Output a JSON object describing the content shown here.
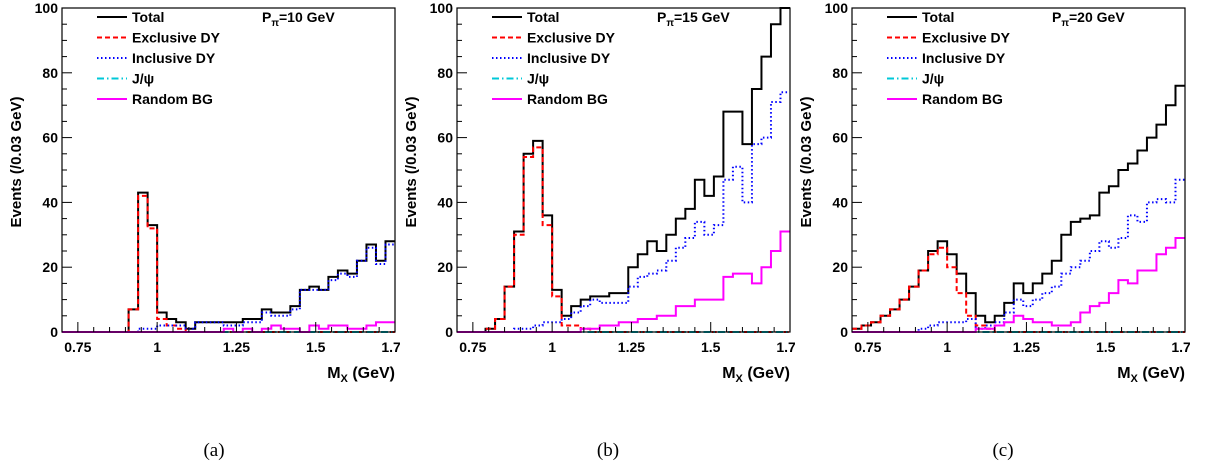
{
  "chart_data": [
    {
      "type": "histogram",
      "title": "",
      "caption": "(a)",
      "annotation": {
        "main": "P",
        "sub": "π",
        "rest": "=10 GeV"
      },
      "xlabel": {
        "main": "M",
        "sub": "X",
        "rest": " (GeV)"
      },
      "ylabel": "Events (/0.03 GeV)",
      "xlim": [
        0.7,
        1.75
      ],
      "ylim": [
        0,
        100
      ],
      "xticks": [
        0.75,
        1,
        1.25,
        1.5,
        1.75
      ],
      "xtick_labels": [
        "0.75",
        "1",
        "1.25",
        "1.5",
        "1.75"
      ],
      "yticks": [
        0,
        20,
        40,
        60,
        80,
        100
      ],
      "ytick_labels": [
        "0",
        "20",
        "40",
        "60",
        "80",
        "100"
      ],
      "legend": {
        "placement": "top-left"
      },
      "x_edges": [
        0.7,
        0.73,
        0.76,
        0.79,
        0.82,
        0.85,
        0.88,
        0.91,
        0.94,
        0.97,
        1.0,
        1.03,
        1.06,
        1.09,
        1.12,
        1.15,
        1.18,
        1.21,
        1.24,
        1.27,
        1.3,
        1.33,
        1.36,
        1.39,
        1.42,
        1.45,
        1.48,
        1.51,
        1.54,
        1.57,
        1.6,
        1.63,
        1.66,
        1.69,
        1.72,
        1.75
      ],
      "series": [
        {
          "name": "Total",
          "color": "#000000",
          "dash": "",
          "values": [
            0,
            0,
            0,
            0,
            0,
            0,
            0,
            7,
            43,
            33,
            6,
            4,
            3,
            1,
            3,
            3,
            3,
            3,
            3,
            4,
            4,
            7,
            6,
            6,
            8,
            13,
            14,
            13,
            17,
            19,
            18,
            22,
            27,
            22,
            28
          ]
        },
        {
          "name": "Exclusive DY",
          "color": "#ff0000",
          "dash": "5,3",
          "values": [
            0,
            0,
            0,
            0,
            0,
            0,
            0,
            7,
            42,
            32,
            4,
            2,
            1,
            0,
            0,
            0,
            0,
            0,
            0,
            0,
            0,
            0,
            0,
            0,
            0,
            0,
            0,
            0,
            0,
            0,
            0,
            0,
            0,
            0,
            0
          ]
        },
        {
          "name": "Inclusive DY",
          "color": "#0000ff",
          "dash": "1.5,2.5",
          "values": [
            0,
            0,
            0,
            0,
            0,
            0,
            0,
            0,
            1,
            1,
            2,
            2,
            2,
            1,
            3,
            3,
            3,
            2,
            2,
            3,
            3,
            6,
            5,
            5,
            7,
            13,
            13,
            13,
            16,
            18,
            17,
            22,
            26,
            21,
            27
          ]
        },
        {
          "name": "J/ψ",
          "color": "#00c8d8",
          "dash": "7,3,1.5,3",
          "values": [
            0,
            0,
            0,
            0,
            0,
            0,
            0,
            0,
            0,
            0,
            0,
            0,
            0,
            0,
            0,
            0,
            0,
            0,
            0,
            0,
            0,
            0,
            0,
            0,
            0,
            0,
            0,
            0,
            0,
            0,
            0,
            0,
            0,
            0,
            0
          ]
        },
        {
          "name": "Random BG",
          "color": "#ff00ff",
          "dash": "",
          "values": [
            0,
            0,
            0,
            0,
            0,
            0,
            0,
            0,
            0,
            0,
            0,
            0,
            0,
            0,
            0,
            0,
            0,
            1,
            0,
            1,
            0,
            1,
            2,
            1,
            1,
            0,
            2,
            1,
            2,
            2,
            1,
            1,
            2,
            3,
            3
          ]
        }
      ]
    },
    {
      "type": "histogram",
      "title": "",
      "caption": "(b)",
      "annotation": {
        "main": "P",
        "sub": "π",
        "rest": "=15 GeV"
      },
      "xlabel": {
        "main": "M",
        "sub": "X",
        "rest": " (GeV)"
      },
      "ylabel": "Events (/0.03 GeV)",
      "xlim": [
        0.7,
        1.75
      ],
      "ylim": [
        0,
        100
      ],
      "xticks": [
        0.75,
        1,
        1.25,
        1.5,
        1.75
      ],
      "xtick_labels": [
        "0.75",
        "1",
        "1.25",
        "1.5",
        "1.75"
      ],
      "yticks": [
        0,
        20,
        40,
        60,
        80,
        100
      ],
      "ytick_labels": [
        "0",
        "20",
        "40",
        "60",
        "80",
        "100"
      ],
      "legend": {
        "placement": "top-left"
      },
      "x_edges": [
        0.7,
        0.73,
        0.76,
        0.79,
        0.82,
        0.85,
        0.88,
        0.91,
        0.94,
        0.97,
        1.0,
        1.03,
        1.06,
        1.09,
        1.12,
        1.15,
        1.18,
        1.21,
        1.24,
        1.27,
        1.3,
        1.33,
        1.36,
        1.39,
        1.42,
        1.45,
        1.48,
        1.51,
        1.54,
        1.57,
        1.6,
        1.63,
        1.66,
        1.69,
        1.72,
        1.75
      ],
      "series": [
        {
          "name": "Total",
          "color": "#000000",
          "dash": "",
          "values": [
            0,
            0,
            0,
            1,
            4,
            14,
            31,
            55,
            59,
            36,
            13,
            5,
            8,
            10,
            11,
            11,
            12,
            12,
            20,
            24,
            28,
            25,
            30,
            35,
            38,
            47,
            42,
            48,
            68,
            68,
            58,
            75,
            85,
            95,
            100
          ]
        },
        {
          "name": "Exclusive DY",
          "color": "#ff0000",
          "dash": "5,3",
          "values": [
            0,
            0,
            0,
            1,
            4,
            14,
            30,
            54,
            57,
            33,
            11,
            2,
            2,
            1,
            0,
            0,
            0,
            0,
            0,
            0,
            0,
            0,
            0,
            0,
            0,
            0,
            0,
            0,
            0,
            0,
            0,
            0,
            0,
            0,
            0
          ]
        },
        {
          "name": "Inclusive DY",
          "color": "#0000ff",
          "dash": "1.5,2.5",
          "values": [
            0,
            0,
            0,
            0,
            0,
            0,
            1,
            1,
            2,
            3,
            3,
            4,
            6,
            8,
            10,
            9,
            9,
            9,
            14,
            17,
            18,
            19,
            22,
            26,
            29,
            34,
            30,
            33,
            47,
            51,
            40,
            58,
            60,
            71,
            74
          ]
        },
        {
          "name": "J/ψ",
          "color": "#00c8d8",
          "dash": "7,3,1.5,3",
          "values": [
            0,
            0,
            0,
            0,
            0,
            0,
            0,
            0,
            0,
            0,
            0,
            0,
            0,
            0,
            0,
            0,
            0,
            0,
            0,
            0,
            0,
            0,
            0,
            0,
            0,
            0,
            0,
            0,
            0,
            0,
            0,
            0,
            0,
            0,
            0
          ]
        },
        {
          "name": "Random BG",
          "color": "#ff00ff",
          "dash": "",
          "values": [
            0,
            0,
            0,
            0,
            0,
            0,
            0,
            0,
            0,
            0,
            0,
            0,
            0,
            1,
            1,
            2,
            2,
            3,
            3,
            4,
            4,
            5,
            5,
            8,
            8,
            10,
            10,
            10,
            17,
            18,
            18,
            15,
            20,
            25,
            31
          ]
        }
      ]
    },
    {
      "type": "histogram",
      "title": "",
      "caption": "(c)",
      "annotation": {
        "main": "P",
        "sub": "π",
        "rest": "=20 GeV"
      },
      "xlabel": {
        "main": "M",
        "sub": "X",
        "rest": " (GeV)"
      },
      "ylabel": "Events (/0.03 GeV)",
      "xlim": [
        0.7,
        1.75
      ],
      "ylim": [
        0,
        100
      ],
      "xticks": [
        0.75,
        1,
        1.25,
        1.5,
        1.75
      ],
      "xtick_labels": [
        "0.75",
        "1",
        "1.25",
        "1.5",
        "1.75"
      ],
      "yticks": [
        0,
        20,
        40,
        60,
        80,
        100
      ],
      "ytick_labels": [
        "0",
        "20",
        "40",
        "60",
        "80",
        "100"
      ],
      "legend": {
        "placement": "top-left"
      },
      "x_edges": [
        0.7,
        0.73,
        0.76,
        0.79,
        0.82,
        0.85,
        0.88,
        0.91,
        0.94,
        0.97,
        1.0,
        1.03,
        1.06,
        1.09,
        1.12,
        1.15,
        1.18,
        1.21,
        1.24,
        1.27,
        1.3,
        1.33,
        1.36,
        1.39,
        1.42,
        1.45,
        1.48,
        1.51,
        1.54,
        1.57,
        1.6,
        1.63,
        1.66,
        1.69,
        1.72,
        1.75
      ],
      "series": [
        {
          "name": "Total",
          "color": "#000000",
          "dash": "",
          "values": [
            1,
            2,
            3,
            5,
            7,
            10,
            14,
            19,
            25,
            28,
            24,
            18,
            12,
            5,
            3,
            5,
            9,
            15,
            12,
            15,
            18,
            22,
            30,
            34,
            35,
            36,
            43,
            45,
            50,
            52,
            56,
            60,
            64,
            70,
            76
          ]
        },
        {
          "name": "Exclusive DY",
          "color": "#ff0000",
          "dash": "5,3",
          "values": [
            1,
            2,
            3,
            5,
            7,
            10,
            14,
            19,
            24,
            26,
            20,
            12,
            5,
            2,
            1,
            0,
            0,
            0,
            0,
            0,
            0,
            0,
            0,
            0,
            0,
            0,
            0,
            0,
            0,
            0,
            0,
            0,
            0,
            0,
            0
          ]
        },
        {
          "name": "Inclusive DY",
          "color": "#0000ff",
          "dash": "1.5,2.5",
          "values": [
            0,
            0,
            0,
            0,
            0,
            0,
            0,
            1,
            2,
            3,
            3,
            3,
            4,
            1,
            2,
            3,
            6,
            10,
            8,
            10,
            12,
            14,
            18,
            20,
            22,
            25,
            28,
            26,
            29,
            36,
            34,
            40,
            41,
            40,
            47
          ]
        },
        {
          "name": "J/ψ",
          "color": "#00c8d8",
          "dash": "7,3,1.5,3",
          "values": [
            0,
            0,
            0,
            0,
            0,
            0,
            0,
            0,
            0,
            0,
            0,
            0,
            0,
            0,
            0,
            0,
            0,
            0,
            0,
            0,
            0,
            0,
            0,
            0,
            0,
            0,
            0,
            0,
            0,
            0,
            0,
            0,
            0,
            0,
            0
          ]
        },
        {
          "name": "Random BG",
          "color": "#ff00ff",
          "dash": "",
          "values": [
            0,
            0,
            0,
            0,
            0,
            0,
            0,
            0,
            0,
            0,
            0,
            0,
            0,
            1,
            1,
            2,
            3,
            5,
            4,
            3,
            3,
            2,
            2,
            3,
            6,
            8,
            9,
            12,
            16,
            15,
            19,
            19,
            24,
            26,
            29
          ]
        }
      ]
    }
  ]
}
